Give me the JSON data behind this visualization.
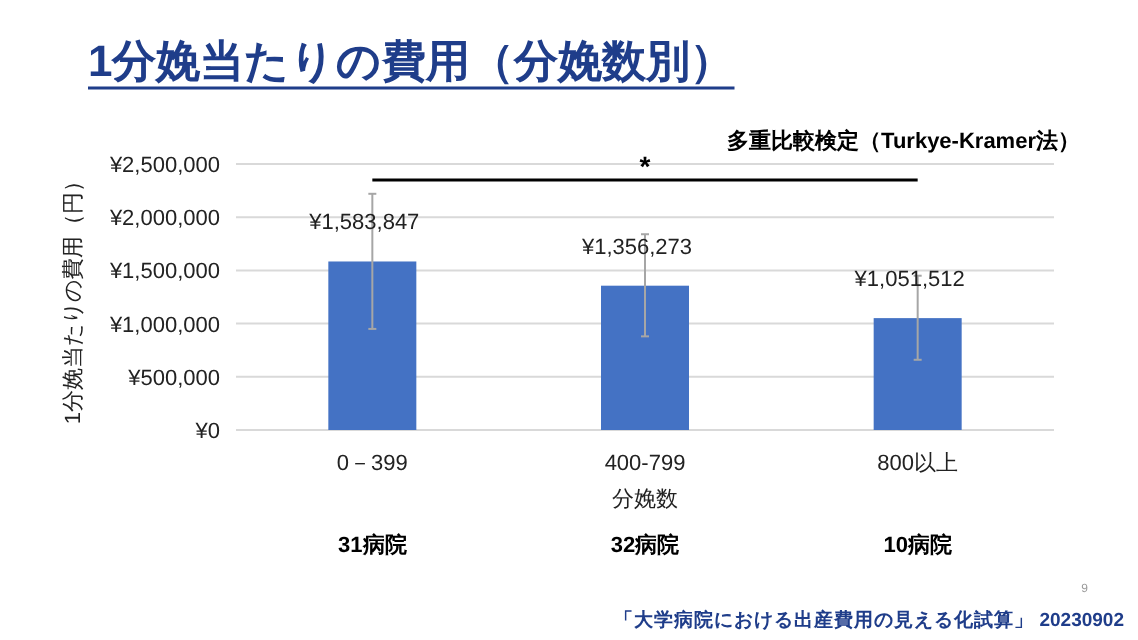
{
  "chart_data": {
    "type": "bar",
    "title": "1分娩当たりの費用（分娩数別）",
    "xlabel": "分娩数",
    "ylabel": "1分娩当たりの費用（円）",
    "categories": [
      "0－399",
      "400-799",
      "800以上"
    ],
    "values": [
      1583847,
      1356273,
      1051512
    ],
    "value_labels": [
      "¥1,583,847",
      "¥1,356,273",
      "¥1,051,512"
    ],
    "errors": [
      [
        950000,
        2220000
      ],
      [
        880000,
        1840000
      ],
      [
        660000,
        1450000
      ]
    ],
    "color": "#4472c4",
    "ylim": [
      0,
      2500000
    ],
    "yticks": [
      {
        "value": 0,
        "label": "¥0"
      },
      {
        "value": 500000,
        "label": "¥500,000"
      },
      {
        "value": 1000000,
        "label": "¥1,000,000"
      },
      {
        "value": 1500000,
        "label": "¥1,500,000"
      },
      {
        "value": 2000000,
        "label": "¥2,000,000"
      },
      {
        "value": 2500000,
        "label": "¥2,500,000"
      }
    ],
    "grid": "y",
    "annotations": [
      "*",
      "多重比較検定（Turkye-Kramer法）",
      "31病院",
      "32病院",
      "10病院",
      "9",
      "「大学病院における出産費用の見える化試算」 20230902"
    ]
  }
}
